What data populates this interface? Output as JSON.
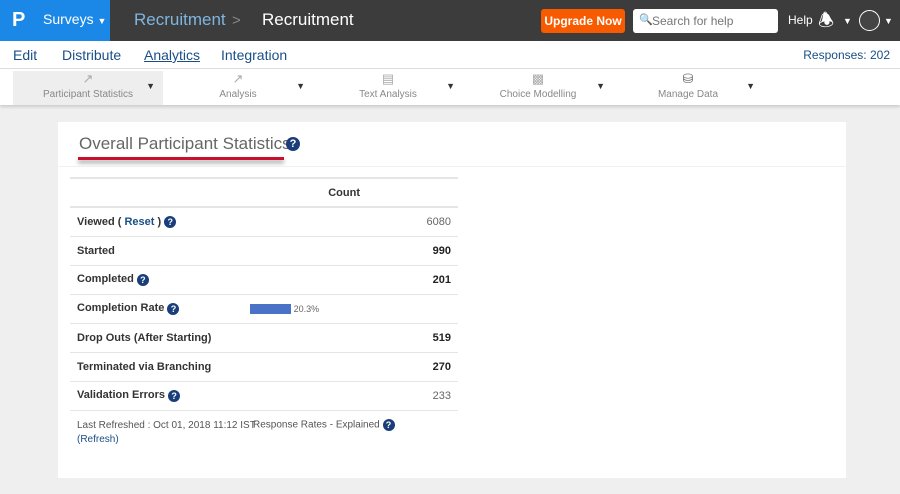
{
  "topbar": {
    "logo": "P",
    "surveys_label": "Surveys",
    "breadcrumb": [
      "Recruitment",
      "Recruitment"
    ],
    "breadcrumb_sep": ">",
    "upgrade_label": "Upgrade Now",
    "search_placeholder": "Search for help",
    "help_label": "Help",
    "brand_color": "#1b87e6",
    "upgrade_color": "#f85a00"
  },
  "nav": {
    "items": [
      {
        "label": "Edit"
      },
      {
        "label": "Distribute"
      },
      {
        "label": "Analytics",
        "active": true
      },
      {
        "label": "Integration"
      }
    ],
    "responses": "Responses: 202"
  },
  "toolbar": {
    "items": [
      {
        "label": "Participant Statistics",
        "icon": "line-chart-icon",
        "active": true
      },
      {
        "label": "Analysis",
        "icon": "scatter-chart-icon"
      },
      {
        "label": "Text Analysis",
        "icon": "document-icon"
      },
      {
        "label": "Choice Modelling",
        "icon": "bar-chart-icon"
      },
      {
        "label": "Manage Data",
        "icon": "database-icon"
      }
    ]
  },
  "stats": {
    "title": "Overall Participant Statistics",
    "column_header": "Count",
    "rows": [
      {
        "label": "Viewed (",
        "link": "Reset",
        ") ": "",
        "close": " )",
        "value": "6080"
      },
      {
        "label": "Started",
        "value": "990"
      },
      {
        "label": "Completed",
        "value": "201"
      },
      {
        "label": "Completion Rate",
        "percent": "20.3%",
        "rate": 20.3
      },
      {
        "label": "Drop Outs (After Starting)",
        "value": "519"
      },
      {
        "label": "Terminated via Branching",
        "value": "270"
      },
      {
        "label": "Validation Errors",
        "value": "233"
      }
    ],
    "last_refreshed": "Last Refreshed : Oct 01, 2018 11:12 IST",
    "refresh_link": "(Refresh)",
    "rates_explained": "Response Rates - Explained"
  }
}
